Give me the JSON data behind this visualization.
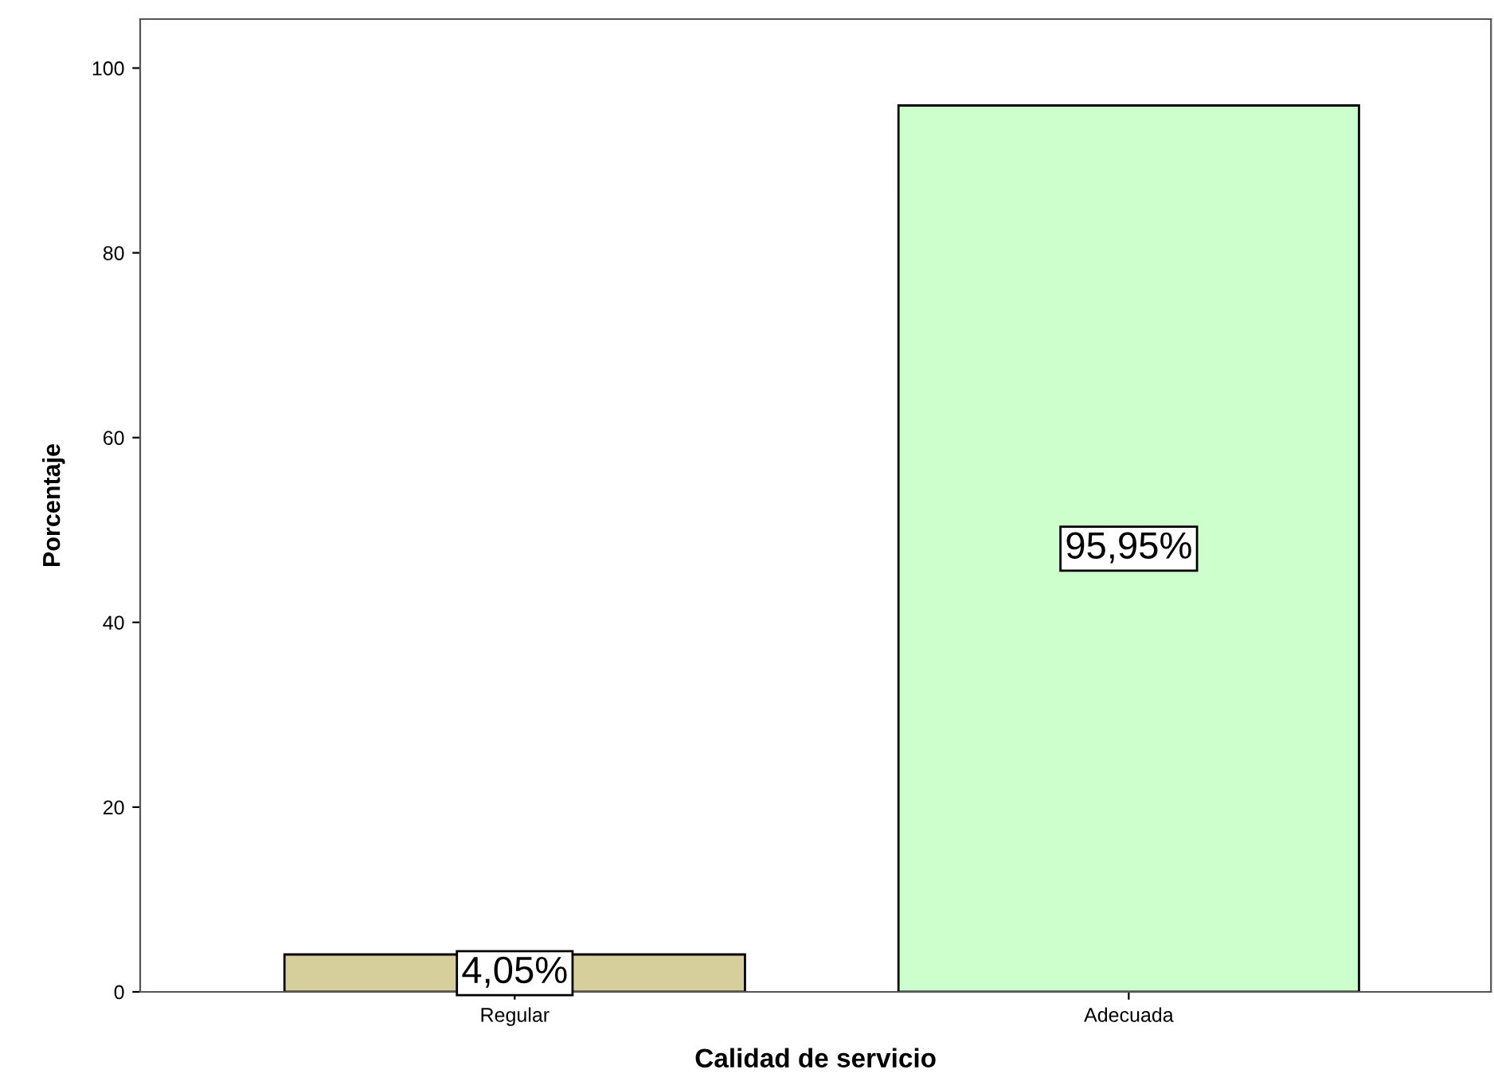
{
  "chart_data": {
    "type": "bar",
    "xlabel": "Calidad de servicio",
    "ylabel": "Porcentaje",
    "categories": [
      "Regular",
      "Adecuada"
    ],
    "values": [
      4.05,
      95.95
    ],
    "colors": [
      "#d6cf9c",
      "#ccffcc"
    ],
    "value_labels": [
      "4,05%",
      "95,95%"
    ],
    "ylim": [
      0,
      105.3
    ],
    "yticks": [
      0,
      20,
      40,
      60,
      80,
      100
    ],
    "grid": false,
    "legend": false
  }
}
